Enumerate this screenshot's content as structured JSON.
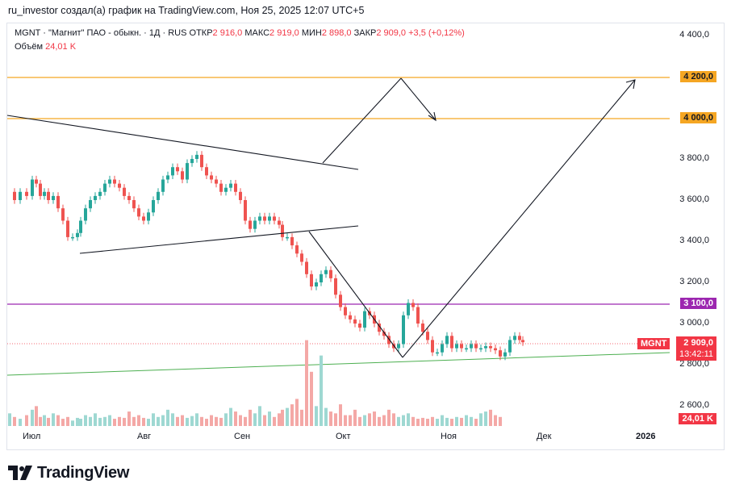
{
  "header": {
    "title": "ru_investor создал(а) график на TradingView.com, Ноя 25, 2025 12:07 UTC+5"
  },
  "legend": {
    "symbol": "MGNT · \"Магнит\" ПАО - обыкн. · 1Д · RUS",
    "open_label": "ОТКР",
    "open_value": "2 916,0",
    "high_label": "МАКС",
    "high_value": "2 919,0",
    "low_label": "МИН",
    "low_value": "2 898,0",
    "close_label": "ЗАКР",
    "close_value": "2 909,0",
    "change": "+3,5 (+0,12%)",
    "volume_label": "Объём",
    "volume_value": "24,01 K"
  },
  "yaxis": {
    "ticks": [
      "4 400,0",
      "3 800,0",
      "3 600,0",
      "3 400,0",
      "3 200,0",
      "3 000,0",
      "2 800,0",
      "2 600,0"
    ]
  },
  "price_tags": {
    "level_4200": "4 200,0",
    "level_4000": "4 000,0",
    "level_3100": "3 100,0",
    "last_price": "2 909,0",
    "countdown": "13:42:11",
    "symbol_tag": "MGNT",
    "volume_tag": "24,01 K"
  },
  "xaxis": {
    "labels": [
      "Июл",
      "Авг",
      "Сен",
      "Окт",
      "Ноя",
      "Дек",
      "2026"
    ]
  },
  "colors": {
    "up": "#26a69a",
    "down": "#ef5350",
    "orange": "#f5a623",
    "purple": "#9c27b0",
    "green_line": "#4caf50",
    "red": "#f23645"
  },
  "brand": {
    "name": "TradingView"
  }
}
